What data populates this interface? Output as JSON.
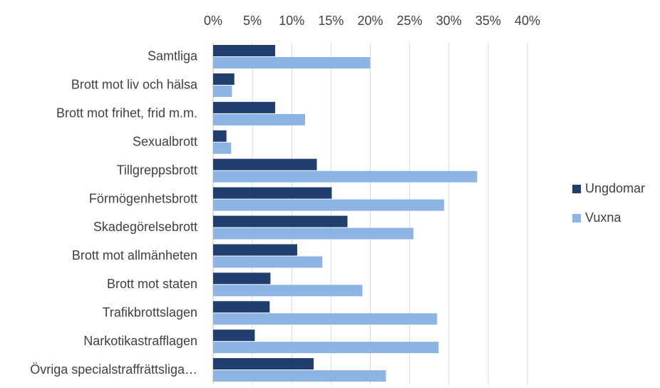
{
  "chart_data": {
    "type": "hbar",
    "categories": [
      "Samtliga",
      "Brott mot liv och hälsa",
      "Brott mot frihet, frid m.m.",
      "Sexualbrott",
      "Tillgreppsbrott",
      "Förmögenhetsbrott",
      "Skadegörelsebrott",
      "Brott mot allmänheten",
      "Brott mot staten",
      "Trafikbrottslagen",
      "Narkotikastrafflagen",
      "Övriga specialstraffrättsliga…"
    ],
    "series": [
      {
        "name": "Ungdomar",
        "color": "#203f6e",
        "values": [
          7.9,
          2.7,
          7.9,
          1.7,
          13.2,
          15.1,
          17.1,
          10.7,
          7.3,
          7.2,
          5.3,
          12.8
        ]
      },
      {
        "name": "Vuxna",
        "color": "#8db4e2",
        "values": [
          20.0,
          2.4,
          11.7,
          2.3,
          33.6,
          29.4,
          25.5,
          13.9,
          19.0,
          28.5,
          28.7,
          22.0
        ]
      }
    ],
    "xlim": [
      0,
      40
    ],
    "xticks": [
      {
        "value": 0,
        "label": "0%"
      },
      {
        "value": 5,
        "label": "5%"
      },
      {
        "value": 10,
        "label": "10%"
      },
      {
        "value": 15,
        "label": "15%"
      },
      {
        "value": 20,
        "label": "20%"
      },
      {
        "value": 25,
        "label": "25%"
      },
      {
        "value": 30,
        "label": "30%"
      },
      {
        "value": 35,
        "label": "35%"
      },
      {
        "value": 40,
        "label": "40%"
      }
    ],
    "grid": true,
    "legend": "right"
  }
}
